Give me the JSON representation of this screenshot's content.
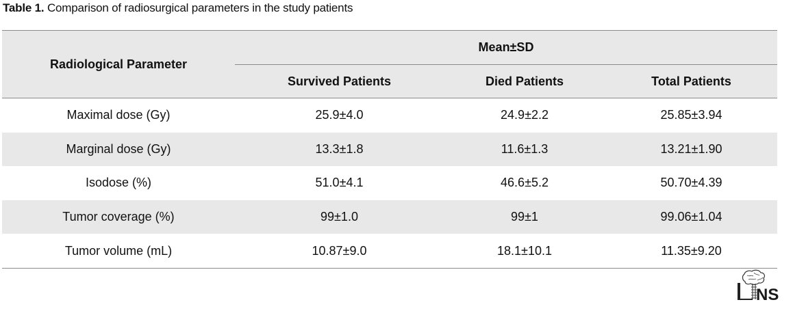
{
  "caption": {
    "label": "Table 1.",
    "text": " Comparison of radiosurgical parameters in the study patients"
  },
  "table": {
    "param_header": "Radiological Parameter",
    "group_header": "Mean±SD",
    "columns": [
      "Survived Patients",
      "Died Patients",
      "Total Patients"
    ],
    "rows": [
      [
        "Maximal dose (Gy)",
        "25.9±4.0",
        "24.9±2.2",
        "25.85±3.94"
      ],
      [
        "Marginal dose (Gy)",
        "13.3±1.8",
        "11.6±1.3",
        "13.21±1.90"
      ],
      [
        "Isodose (%)",
        "51.0±4.1",
        "46.6±5.2",
        "50.70±4.39"
      ],
      [
        "Tumor coverage (%)",
        "99±1.0",
        "99±1",
        "99.06±1.04"
      ],
      [
        "Tumor volume (mL)",
        "10.87±9.0",
        "18.1±10.1",
        "11.35±9.20"
      ]
    ]
  },
  "logo": {
    "text": "INS",
    "icon": "brain-logo-icon"
  }
}
